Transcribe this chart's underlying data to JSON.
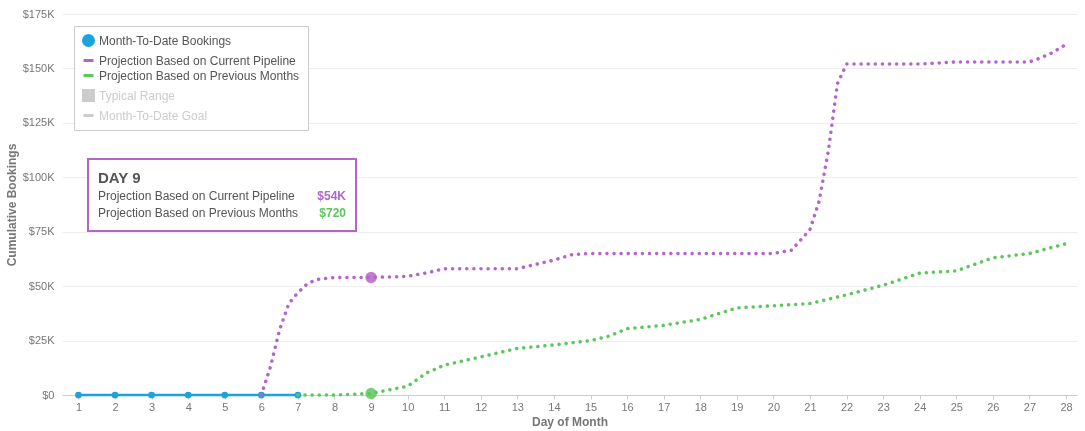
{
  "chart_data": {
    "type": "line",
    "xlabel": "Day of Month",
    "ylabel": "Cumulative Bookings",
    "xlim": [
      0.55,
      28.3
    ],
    "xticks": [
      1,
      2,
      3,
      4,
      5,
      6,
      7,
      8,
      9,
      10,
      11,
      12,
      13,
      14,
      15,
      16,
      17,
      18,
      19,
      20,
      21,
      22,
      23,
      24,
      25,
      26,
      27,
      28
    ],
    "ylim": [
      0,
      175000
    ],
    "yticks": [
      {
        "value": 0,
        "label": "$0"
      },
      {
        "value": 25000,
        "label": "$25K"
      },
      {
        "value": 50000,
        "label": "$50K"
      },
      {
        "value": 75000,
        "label": "$75K"
      },
      {
        "value": 100000,
        "label": "$100K"
      },
      {
        "value": 125000,
        "label": "$125K"
      },
      {
        "value": 150000,
        "label": "$150K"
      },
      {
        "value": 175000,
        "label": "$175K"
      }
    ],
    "grid": "y",
    "legend": "top left",
    "series": [
      {
        "name": "Month-To-Date Bookings",
        "color": "#1ba3dd",
        "marker": "circle",
        "line_style": "solid",
        "x": [
          1,
          2,
          3,
          4,
          5,
          6,
          7
        ],
        "values": [
          0,
          0,
          0,
          0,
          0,
          0,
          0
        ]
      },
      {
        "name": "Projection Based on Current Pipeline",
        "color": "#b565c8",
        "marker": "none",
        "line_style": "dotted",
        "x": [
          6,
          6.25,
          6.5,
          6.75,
          7,
          7.25,
          7.5,
          8,
          9,
          10,
          10.5,
          11,
          12,
          13,
          13.5,
          14,
          14.5,
          15,
          16,
          17,
          18,
          19,
          20,
          20.5,
          21,
          21.25,
          21.5,
          21.75,
          22,
          23,
          24,
          25,
          26,
          27,
          27.25,
          27.6,
          28
        ],
        "values": [
          0,
          13000,
          30000,
          42000,
          47000,
          51000,
          53000,
          54000,
          54000,
          54500,
          56000,
          58000,
          58000,
          58000,
          60000,
          62000,
          64500,
          65000,
          65000,
          65000,
          65000,
          65000,
          65000,
          66500,
          76000,
          89000,
          112000,
          143000,
          152000,
          152000,
          152000,
          153000,
          153000,
          153000,
          154500,
          157000,
          161000
        ]
      },
      {
        "name": "Projection Based on Previous Months",
        "color": "#5cc85c",
        "marker": "none",
        "line_style": "dotted",
        "x": [
          7,
          8,
          9,
          10,
          10.5,
          11,
          12,
          13,
          14,
          15,
          15.5,
          16,
          17,
          18,
          19,
          20,
          21,
          22,
          23,
          24,
          25,
          26,
          27,
          28
        ],
        "values": [
          0,
          0,
          720,
          4000,
          10000,
          13700,
          17500,
          21400,
          23000,
          25000,
          27000,
          30500,
          32000,
          34700,
          40000,
          41000,
          42000,
          46000,
          50400,
          56000,
          57000,
          63000,
          65000,
          69500
        ]
      },
      {
        "name": "Typical Range",
        "type": "area",
        "color": "#cccccc"
      },
      {
        "name": "Month-To-Date Goal",
        "color": "#cccccc"
      },
      {
        "type": "scatter",
        "colors": [
          "#b565c8",
          "#5cc85c"
        ],
        "x": [
          9,
          9
        ],
        "values": [
          54000,
          720
        ]
      }
    ],
    "annotations": [
      "DAY 9",
      "Projection Based on Current Pipeline",
      "$54K",
      "Projection Based on Previous Months",
      "$720"
    ]
  }
}
